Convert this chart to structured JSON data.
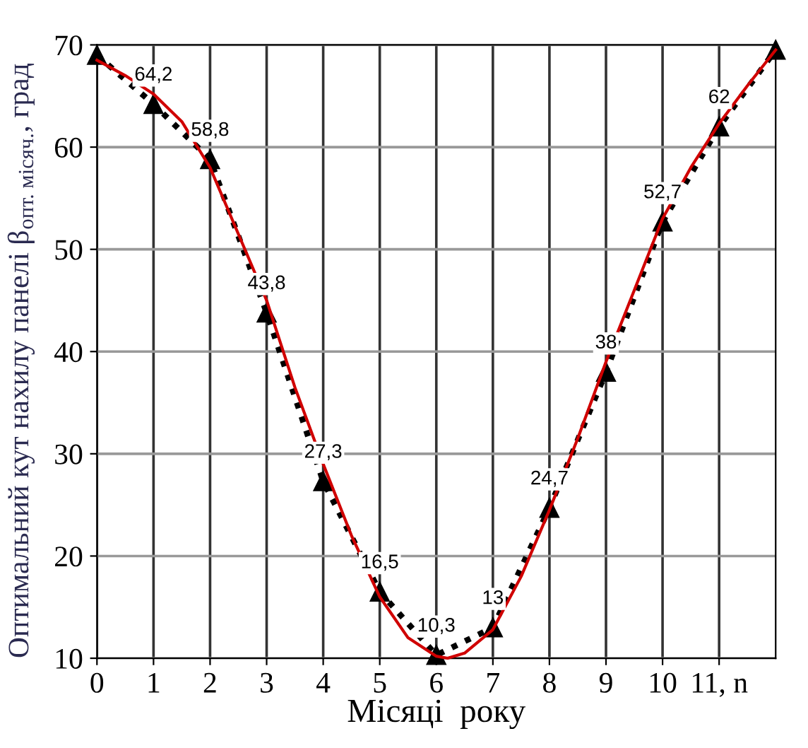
{
  "chart_data": {
    "type": "line",
    "xlabel": "Місяці  року",
    "ylabel": "Оптимальний кут нахилу панелі β$_{опт. місяч.}$, град",
    "xlim": [
      0,
      12
    ],
    "ylim": [
      10,
      70
    ],
    "xticks": [
      0,
      1,
      2,
      3,
      4,
      5,
      6,
      7,
      8,
      9,
      10,
      {
        "value": 11,
        "label": "11, n"
      }
    ],
    "yticks": [
      10,
      20,
      30,
      40,
      50,
      60,
      70
    ],
    "grid": true,
    "series": [
      {
        "color": "#d00000",
        "line_style": "solid",
        "marker": "none",
        "x": [
          0,
          0.5,
          1,
          1.5,
          2,
          2.5,
          3,
          3.5,
          4,
          4.5,
          5,
          5.5,
          6,
          6.2,
          6.5,
          7,
          7.5,
          8,
          8.5,
          9,
          9.5,
          10,
          10.5,
          11,
          11.5,
          12
        ],
        "values": [
          68.5,
          67,
          65.2,
          62.5,
          58,
          51.5,
          45,
          36.5,
          29,
          22,
          16,
          12,
          10.2,
          10,
          10.5,
          12.8,
          18,
          24.5,
          31.5,
          39,
          46,
          53,
          58,
          62.3,
          66,
          69.5
        ]
      },
      {
        "color": "#000000",
        "line_style": "dotted",
        "marker": "triangle",
        "x": [
          0,
          1,
          2,
          3,
          4,
          5,
          6,
          7,
          8,
          9,
          10,
          11,
          12
        ],
        "values": [
          69,
          64.2,
          58.8,
          43.8,
          27.3,
          16.5,
          10.3,
          13,
          24.7,
          38,
          52.7,
          62,
          69.5
        ],
        "value_labels": [
          null,
          "64,2",
          "58,8",
          "43,8",
          "27,3",
          "16,5",
          "10,3",
          "13",
          "24,7",
          "38",
          "52,7",
          "62",
          null
        ]
      }
    ]
  }
}
